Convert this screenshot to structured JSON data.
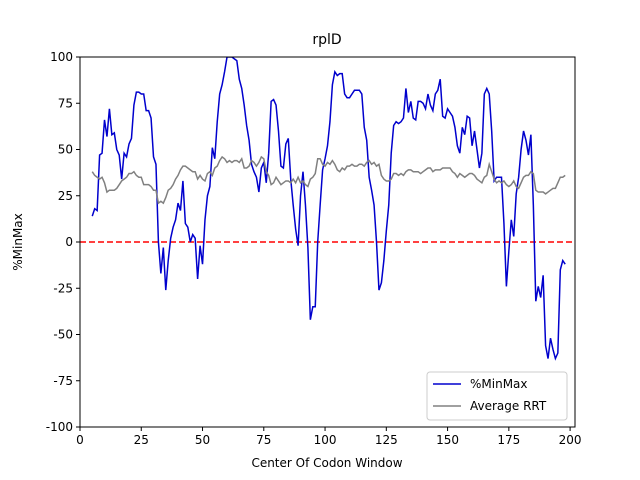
{
  "chart_data": {
    "type": "line",
    "title": "rplD",
    "x_label": "Center Of Codon Window",
    "y_label": "%MinMax",
    "x": [
      5,
      6,
      7,
      8,
      9,
      10,
      11,
      12,
      13,
      14,
      15,
      16,
      17,
      18,
      19,
      20,
      21,
      22,
      23,
      24,
      25,
      26,
      27,
      28,
      29,
      30,
      31,
      32,
      33,
      34,
      35,
      36,
      37,
      38,
      39,
      40,
      41,
      42,
      43,
      44,
      45,
      46,
      47,
      48,
      49,
      50,
      51,
      52,
      53,
      54,
      55,
      56,
      57,
      58,
      59,
      60,
      61,
      62,
      63,
      64,
      65,
      66,
      67,
      68,
      69,
      70,
      71,
      72,
      73,
      74,
      75,
      76,
      77,
      78,
      79,
      80,
      81,
      82,
      83,
      84,
      85,
      86,
      87,
      88,
      89,
      90,
      91,
      92,
      93,
      94,
      95,
      96,
      97,
      98,
      99,
      100,
      101,
      102,
      103,
      104,
      105,
      106,
      107,
      108,
      109,
      110,
      111,
      112,
      113,
      114,
      115,
      116,
      117,
      118,
      119,
      120,
      121,
      122,
      123,
      124,
      125,
      126,
      127,
      128,
      129,
      130,
      131,
      132,
      133,
      134,
      135,
      136,
      137,
      138,
      139,
      140,
      141,
      142,
      143,
      144,
      145,
      146,
      147,
      148,
      149,
      150,
      151,
      152,
      153,
      154,
      155,
      156,
      157,
      158,
      159,
      160,
      161,
      162,
      163,
      164,
      165,
      166,
      167,
      168,
      169,
      170,
      171,
      172,
      173,
      174,
      175,
      176,
      177,
      178,
      179,
      180,
      181,
      182,
      183,
      184,
      185,
      186,
      187,
      188,
      189,
      190,
      191,
      192,
      193,
      194,
      195,
      196,
      197,
      198
    ],
    "series": [
      {
        "name": "%MinMax",
        "color": "#0000cd",
        "values": [
          14,
          18,
          17,
          47,
          48,
          66,
          57,
          72,
          58,
          59,
          50,
          47,
          34,
          48,
          46,
          53,
          56,
          74,
          81,
          81,
          80,
          80,
          71,
          71,
          67,
          46,
          42,
          0,
          -17,
          -3,
          -26,
          -10,
          2,
          8,
          12,
          21,
          17,
          33,
          10,
          8,
          0,
          4,
          2,
          -20,
          -2,
          -12,
          12,
          25,
          30,
          51,
          45,
          65,
          80,
          85,
          92,
          100,
          100,
          100,
          99,
          98,
          88,
          83,
          74,
          63,
          55,
          42,
          38,
          35,
          27,
          40,
          43,
          32,
          48,
          76,
          77,
          74,
          60,
          41,
          40,
          53,
          56,
          34,
          20,
          7,
          -2,
          25,
          38,
          20,
          -3,
          -42,
          -35,
          -35,
          0,
          20,
          39,
          45,
          52,
          65,
          85,
          92,
          90,
          91,
          91,
          80,
          78,
          78,
          80,
          82,
          82,
          82,
          80,
          62,
          55,
          35,
          28,
          20,
          0,
          -26,
          -22,
          -10,
          6,
          20,
          48,
          63,
          65,
          64,
          65,
          67,
          83,
          70,
          76,
          67,
          66,
          76,
          76,
          75,
          72,
          80,
          74,
          71,
          80,
          82,
          88,
          68,
          67,
          72,
          70,
          68,
          62,
          52,
          48,
          62,
          58,
          68,
          67,
          52,
          60,
          50,
          40,
          48,
          80,
          83,
          80,
          60,
          33,
          35,
          35,
          35,
          10,
          -24,
          -5,
          12,
          3,
          26,
          35,
          50,
          60,
          55,
          47,
          58,
          20,
          -32,
          -24,
          -30,
          -18,
          -56,
          -63,
          -52,
          -58,
          -63,
          -60,
          -15,
          -10,
          -12
        ]
      },
      {
        "name": "Average RRT",
        "color": "#808080",
        "values": [
          38,
          36,
          35,
          34,
          35,
          32,
          27,
          28,
          28,
          28,
          29,
          31,
          33,
          34,
          35,
          37,
          37,
          38,
          36,
          35,
          35,
          31,
          31,
          31,
          30,
          28,
          28,
          21,
          22,
          21,
          24,
          28,
          29,
          31,
          34,
          36,
          39,
          41,
          41,
          40,
          39,
          38,
          38,
          34,
          36,
          34,
          33,
          37,
          38,
          36,
          40,
          41,
          44,
          46,
          45,
          43,
          44,
          43,
          44,
          44,
          43,
          45,
          40,
          40,
          41,
          44,
          43,
          41,
          43,
          46,
          45,
          38,
          36,
          31,
          32,
          35,
          33,
          31,
          32,
          33,
          33,
          32,
          34,
          32,
          35,
          32,
          33,
          31,
          30,
          34,
          35,
          37,
          45,
          45,
          42,
          41,
          43,
          42,
          44,
          42,
          39,
          38,
          40,
          39,
          41,
          41,
          42,
          41,
          41,
          42,
          42,
          41,
          43,
          44,
          42,
          43,
          41,
          42,
          36,
          34,
          33,
          33,
          34,
          37,
          37,
          36,
          37,
          36,
          38,
          39,
          39,
          38,
          38,
          38,
          37,
          38,
          39,
          40,
          40,
          38,
          39,
          39,
          39,
          40,
          40,
          40,
          40,
          38,
          37,
          35,
          37,
          36,
          35,
          36,
          37,
          37,
          36,
          34,
          33,
          32,
          35,
          36,
          42,
          38,
          34,
          32,
          33,
          32,
          33,
          31,
          30,
          31,
          33,
          30,
          29,
          32,
          35,
          36,
          36,
          38,
          37,
          28,
          27,
          27,
          27,
          26,
          27,
          28,
          29,
          29,
          32,
          35,
          35,
          36
        ]
      }
    ],
    "hlines": [
      {
        "y": 0,
        "color": "#ff0000",
        "style": "dashed"
      }
    ],
    "xlim": [
      0,
      202
    ],
    "ylim": [
      -100,
      100
    ],
    "xticks": [
      0,
      25,
      50,
      75,
      100,
      125,
      150,
      175,
      200
    ],
    "yticks": [
      -100,
      -75,
      -50,
      -25,
      0,
      25,
      50,
      75,
      100
    ],
    "legend": "lower right",
    "grid": false
  }
}
